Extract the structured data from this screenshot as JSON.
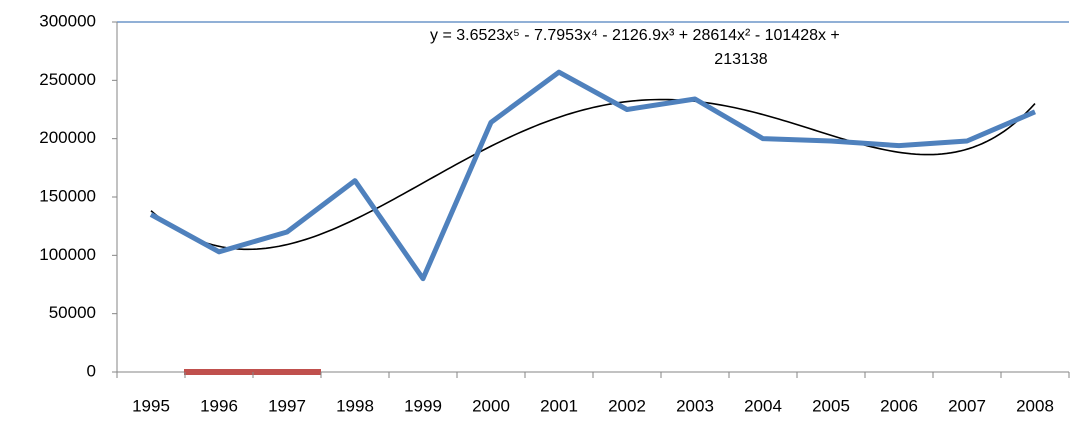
{
  "chart_data": {
    "type": "line",
    "categories": [
      "1995",
      "1996",
      "1997",
      "1998",
      "1999",
      "2000",
      "2001",
      "2002",
      "2003",
      "2004",
      "2005",
      "2006",
      "2007",
      "2008"
    ],
    "series": [
      {
        "color": "#4f81bd",
        "values": [
          135000,
          103000,
          120000,
          164000,
          80000,
          214000,
          257000,
          225000,
          234000,
          200000,
          198000,
          194000,
          198000,
          223000
        ]
      }
    ],
    "trendline": {
      "color": "#000000",
      "coefficients": [
        213138,
        -101428,
        28614,
        -2126.9,
        -7.7953,
        3.6523
      ],
      "label_lines": [
        "y = 3.6523x⁵ - 7.7953x⁴ - 2126.9x³ + 28614x² - 101428x +",
        "213138"
      ]
    },
    "ylim": [
      0,
      300000
    ],
    "yticks": [
      0,
      50000,
      100000,
      150000,
      200000,
      250000,
      300000
    ],
    "grid": false
  }
}
